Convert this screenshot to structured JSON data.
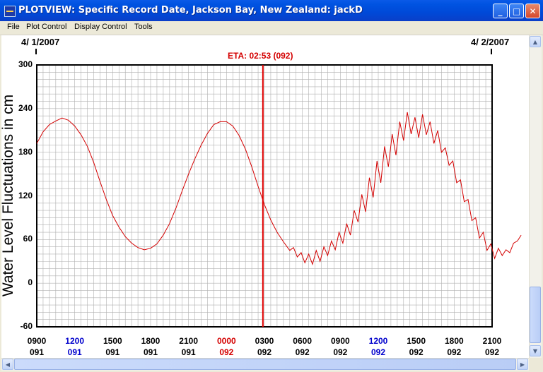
{
  "window": {
    "title": "PLOTVIEW: Specific Record Date, Jackson Bay, New Zealand: jackD",
    "minimize_glyph": "_",
    "maximize_glyph": "□",
    "close_glyph": "✕"
  },
  "menu": [
    "File",
    "Plot Control",
    "Display Control",
    "Tools"
  ],
  "header": {
    "date_left": "4/ 1/2007",
    "date_right": "4/ 2/2007",
    "eta_label": "ETA: 02:53 (092)"
  },
  "colors": {
    "series": "#d40000",
    "eta_line": "#e00000",
    "noon": "#0000cc",
    "midnight": "#d40000",
    "grid": "#b0b0b0"
  },
  "chart_data": {
    "type": "line",
    "title": "",
    "ylabel": "Water Level Fluctuations in cm",
    "xlabel": "",
    "ylim": [
      -60,
      300
    ],
    "yticks": [
      "300",
      "240",
      "180",
      "120",
      "60",
      "0",
      "-60"
    ],
    "x_hours_range": [
      9,
      45
    ],
    "x_ticks": [
      {
        "time": "0900",
        "day": "091",
        "type": "normal"
      },
      {
        "time": "1200",
        "day": "091",
        "type": "noon"
      },
      {
        "time": "1500",
        "day": "091",
        "type": "normal"
      },
      {
        "time": "1800",
        "day": "091",
        "type": "normal"
      },
      {
        "time": "2100",
        "day": "091",
        "type": "normal"
      },
      {
        "time": "0000",
        "day": "092",
        "type": "midnight"
      },
      {
        "time": "0300",
        "day": "092",
        "type": "normal"
      },
      {
        "time": "0600",
        "day": "092",
        "type": "normal"
      },
      {
        "time": "0900",
        "day": "092",
        "type": "normal"
      },
      {
        "time": "1200",
        "day": "092",
        "type": "noon"
      },
      {
        "time": "1500",
        "day": "092",
        "type": "normal"
      },
      {
        "time": "1800",
        "day": "092",
        "type": "normal"
      },
      {
        "time": "2100",
        "day": "092",
        "type": "normal"
      }
    ],
    "eta_hour": 26.88,
    "grid": true,
    "series": [
      {
        "points": [
          [
            9.0,
            192
          ],
          [
            9.5,
            208
          ],
          [
            10.0,
            218
          ],
          [
            10.5,
            223
          ],
          [
            11.0,
            227
          ],
          [
            11.5,
            224
          ],
          [
            12.0,
            216
          ],
          [
            12.5,
            204
          ],
          [
            13.0,
            188
          ],
          [
            13.5,
            166
          ],
          [
            14.0,
            140
          ],
          [
            14.5,
            115
          ],
          [
            15.0,
            93
          ],
          [
            15.5,
            77
          ],
          [
            16.0,
            64
          ],
          [
            16.5,
            55
          ],
          [
            17.0,
            49
          ],
          [
            17.5,
            46
          ],
          [
            18.0,
            48
          ],
          [
            18.5,
            54
          ],
          [
            19.0,
            66
          ],
          [
            19.5,
            82
          ],
          [
            20.0,
            103
          ],
          [
            20.5,
            127
          ],
          [
            21.0,
            150
          ],
          [
            21.5,
            171
          ],
          [
            22.0,
            190
          ],
          [
            22.5,
            206
          ],
          [
            23.0,
            218
          ],
          [
            23.5,
            222
          ],
          [
            24.0,
            222
          ],
          [
            24.5,
            216
          ],
          [
            25.0,
            203
          ],
          [
            25.5,
            184
          ],
          [
            26.0,
            160
          ],
          [
            26.5,
            133
          ],
          [
            27.0,
            108
          ],
          [
            27.5,
            87
          ],
          [
            28.0,
            70
          ],
          [
            28.5,
            57
          ],
          [
            29.0,
            45
          ],
          [
            29.3,
            49
          ],
          [
            29.6,
            36
          ],
          [
            29.9,
            42
          ],
          [
            30.2,
            28
          ],
          [
            30.5,
            40
          ],
          [
            30.8,
            26
          ],
          [
            31.1,
            45
          ],
          [
            31.4,
            30
          ],
          [
            31.7,
            50
          ],
          [
            32.0,
            38
          ],
          [
            32.3,
            58
          ],
          [
            32.6,
            46
          ],
          [
            32.9,
            70
          ],
          [
            33.2,
            55
          ],
          [
            33.5,
            82
          ],
          [
            33.8,
            66
          ],
          [
            34.1,
            100
          ],
          [
            34.4,
            84
          ],
          [
            34.7,
            122
          ],
          [
            35.0,
            98
          ],
          [
            35.3,
            145
          ],
          [
            35.6,
            118
          ],
          [
            35.9,
            168
          ],
          [
            36.2,
            138
          ],
          [
            36.5,
            188
          ],
          [
            36.8,
            160
          ],
          [
            37.1,
            205
          ],
          [
            37.4,
            176
          ],
          [
            37.7,
            222
          ],
          [
            38.0,
            196
          ],
          [
            38.3,
            235
          ],
          [
            38.6,
            205
          ],
          [
            38.9,
            228
          ],
          [
            39.2,
            200
          ],
          [
            39.5,
            232
          ],
          [
            39.8,
            204
          ],
          [
            40.1,
            222
          ],
          [
            40.4,
            192
          ],
          [
            40.7,
            210
          ],
          [
            41.0,
            180
          ],
          [
            41.3,
            186
          ],
          [
            41.6,
            162
          ],
          [
            41.9,
            168
          ],
          [
            42.2,
            138
          ],
          [
            42.5,
            142
          ],
          [
            42.8,
            112
          ],
          [
            43.1,
            115
          ],
          [
            43.4,
            86
          ],
          [
            43.7,
            90
          ],
          [
            44.0,
            62
          ],
          [
            44.3,
            70
          ],
          [
            44.6,
            45
          ],
          [
            44.9,
            54
          ],
          [
            45.2,
            34
          ],
          [
            45.5,
            48
          ],
          [
            45.8,
            38
          ],
          [
            46.1,
            46
          ],
          [
            46.4,
            42
          ],
          [
            46.7,
            55
          ],
          [
            47.0,
            58
          ],
          [
            47.3,
            66
          ]
        ]
      }
    ]
  }
}
